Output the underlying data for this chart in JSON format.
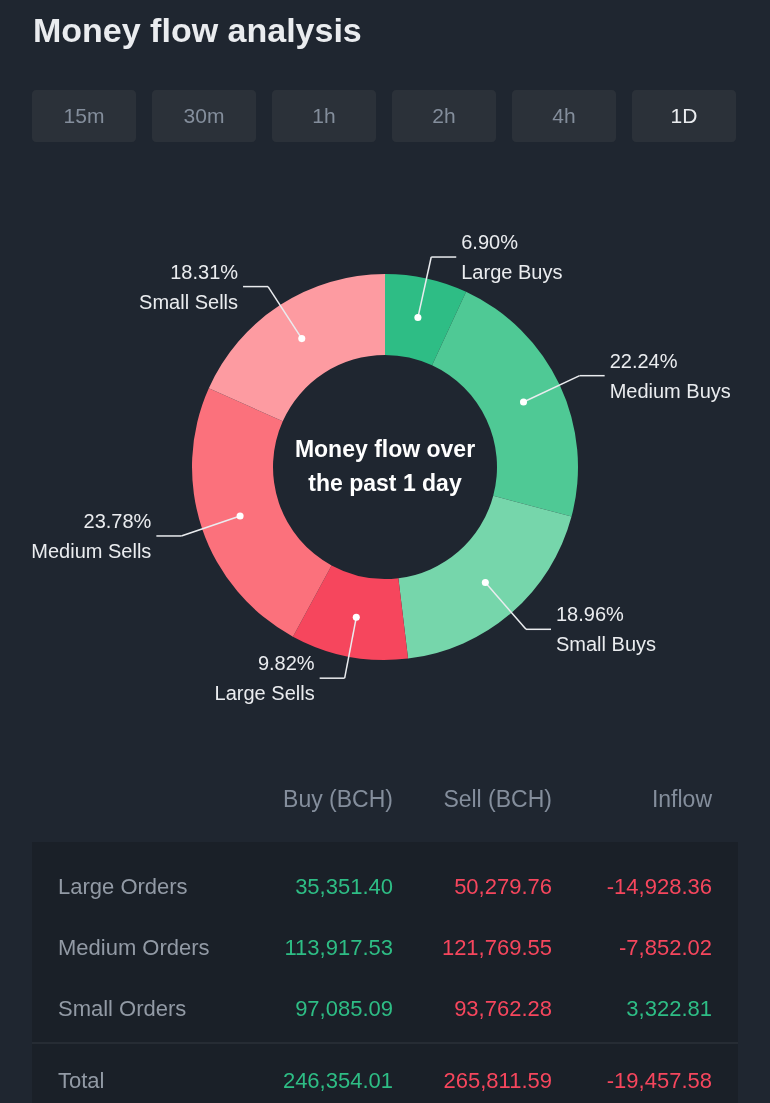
{
  "chart_data": {
    "type": "donut",
    "title": "Money flow analysis",
    "categories": [
      "Large Buys",
      "Medium Buys",
      "Small Buys",
      "Large Sells",
      "Medium Sells",
      "Small Sells"
    ],
    "values": [
      6.9,
      22.24,
      18.96,
      9.82,
      23.78,
      18.31
    ],
    "colors": [
      "#2ebd85",
      "#4fc995",
      "#76d6ab",
      "#f6465d",
      "#fb717c",
      "#fd9ba1"
    ],
    "value_labels": [
      "6.90%",
      "22.24%",
      "18.96%",
      "9.82%",
      "23.78%",
      "18.31%"
    ],
    "annotations": [
      "15m",
      "30m",
      "1h",
      "2h",
      "4h",
      "1D",
      "Money flow over the past 1 day",
      "Buy (BCH)",
      "Sell (BCH)",
      "Inflow",
      "Large Orders",
      "35,351.40",
      "50,279.76",
      "-14,928.36",
      "Medium Orders",
      "113,917.53",
      "121,769.55",
      "-7,852.02",
      "Small Orders",
      "97,085.09",
      "93,762.28",
      "3,322.81",
      "Total",
      "246,354.01",
      "265,811.59",
      "-19,457.58"
    ]
  }
}
